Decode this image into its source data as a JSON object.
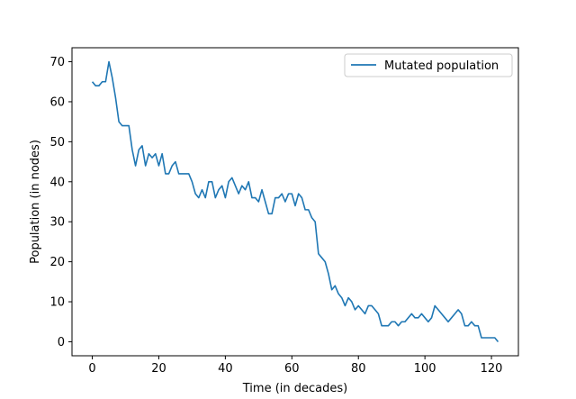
{
  "chart_data": {
    "type": "line",
    "title": "",
    "xlabel": "Time (in decades)",
    "ylabel": "Population (in nodes)",
    "xlim": [
      -6.1,
      128.1
    ],
    "ylim": [
      -3.5,
      73.5
    ],
    "xticks": [
      0,
      20,
      40,
      60,
      80,
      100,
      120
    ],
    "yticks": [
      0,
      10,
      20,
      30,
      40,
      50,
      60,
      70
    ],
    "grid": false,
    "legend_position": "top-right",
    "series": [
      {
        "name": "Mutated population",
        "color": "#1f77b4",
        "x": [
          0,
          1,
          2,
          3,
          4,
          5,
          6,
          7,
          8,
          9,
          10,
          11,
          12,
          13,
          14,
          15,
          16,
          17,
          18,
          19,
          20,
          21,
          22,
          23,
          24,
          25,
          26,
          27,
          28,
          29,
          30,
          31,
          32,
          33,
          34,
          35,
          36,
          37,
          38,
          39,
          40,
          41,
          42,
          43,
          44,
          45,
          46,
          47,
          48,
          49,
          50,
          51,
          52,
          53,
          54,
          55,
          56,
          57,
          58,
          59,
          60,
          61,
          62,
          63,
          64,
          65,
          66,
          67,
          68,
          69,
          70,
          71,
          72,
          73,
          74,
          75,
          76,
          77,
          78,
          79,
          80,
          81,
          82,
          83,
          84,
          85,
          86,
          87,
          88,
          89,
          90,
          91,
          92,
          93,
          94,
          95,
          96,
          97,
          98,
          99,
          100,
          101,
          102,
          103,
          104,
          105,
          106,
          107,
          108,
          109,
          110,
          111,
          112,
          113,
          114,
          115,
          116,
          117,
          118,
          119,
          120,
          121,
          122
        ],
        "y": [
          65,
          64,
          64,
          65,
          65,
          70,
          66,
          61,
          55,
          54,
          54,
          54,
          48,
          44,
          48,
          49,
          44,
          47,
          46,
          47,
          44,
          47,
          42,
          42,
          44,
          45,
          42,
          42,
          42,
          42,
          40,
          37,
          36,
          38,
          36,
          40,
          40,
          36,
          38,
          39,
          36,
          40,
          41,
          39,
          37,
          39,
          38,
          40,
          36,
          36,
          35,
          38,
          35,
          32,
          32,
          36,
          36,
          37,
          35,
          37,
          37,
          34,
          37,
          36,
          33,
          33,
          31,
          30,
          22,
          21,
          20,
          17,
          13,
          14,
          12,
          11,
          9,
          11,
          10,
          8,
          9,
          8,
          7,
          9,
          9,
          8,
          7,
          4,
          4,
          4,
          5,
          5,
          4,
          5,
          5,
          6,
          7,
          6,
          6,
          7,
          6,
          5,
          6,
          9,
          8,
          7,
          6,
          5,
          6,
          7,
          8,
          7,
          4,
          4,
          5,
          4,
          4,
          1,
          1,
          1,
          1,
          1,
          0
        ]
      }
    ]
  }
}
